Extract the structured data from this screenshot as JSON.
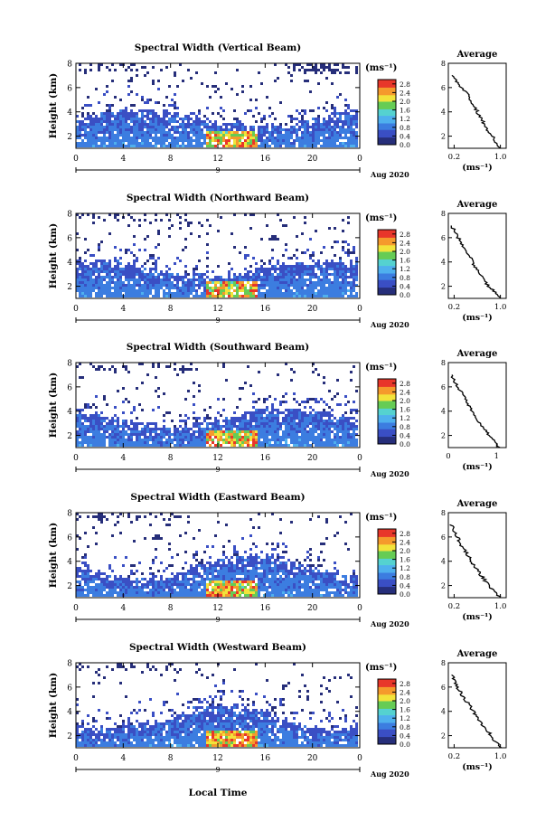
{
  "figure": {
    "xlabel": "Local Time",
    "colorbar_unit": "(ms⁻¹)",
    "avg_title": "Average",
    "avg_xlabel": "(ms⁻¹)",
    "date_label": "Aug 2020",
    "day_label": "9",
    "colors": {
      "darkest": "#262e7a",
      "dark_blue": "#3a4fc4",
      "blue": "#3c7de0",
      "light_blue": "#4fb0ee",
      "cyan": "#55d2d0",
      "green": "#66cc55",
      "yellow": "#f2e33a",
      "orange": "#f59a2c",
      "red": "#e8362a"
    }
  },
  "chart_data": [
    {
      "type": "heatmap",
      "title": "Spectral Width (Vertical Beam)",
      "ylabel": "Height (km)",
      "x_ticks": [
        "0",
        "4",
        "8",
        "12",
        "16",
        "20",
        "0"
      ],
      "y_ticks": [
        "2",
        "4",
        "6",
        "8"
      ],
      "xlim": [
        0,
        24
      ],
      "ylim": [
        1,
        8
      ],
      "colorbar_ticks": [
        "0.0",
        "0.4",
        "0.8",
        "1.2",
        "1.6",
        "2.0",
        "2.4",
        "2.8"
      ],
      "colorbar_range": [
        0,
        3.0
      ],
      "average": {
        "ticks": [
          "0.2",
          "1.0"
        ],
        "xlim": [
          0.1,
          1.1
        ],
        "ylim": [
          1,
          8
        ],
        "y_ticks": [
          "2",
          "4",
          "6",
          "8"
        ],
        "profile": {
          "height": [
            1.0,
            1.5,
            2.0,
            2.5,
            3.0,
            3.5,
            4.0,
            4.5,
            5.0,
            5.5,
            6.0,
            6.5,
            7.0
          ],
          "value": [
            1.0,
            0.93,
            0.86,
            0.78,
            0.72,
            0.66,
            0.6,
            0.55,
            0.48,
            0.42,
            0.33,
            0.25,
            0.18
          ]
        }
      }
    },
    {
      "type": "heatmap",
      "title": "Spectral Width (Northward Beam)",
      "ylabel": "Height (km)",
      "x_ticks": [
        "0",
        "4",
        "8",
        "12",
        "16",
        "20",
        "0"
      ],
      "y_ticks": [
        "2",
        "4",
        "6",
        "8"
      ],
      "xlim": [
        0,
        24
      ],
      "ylim": [
        1,
        8
      ],
      "colorbar_ticks": [
        "0.0",
        "0.4",
        "0.8",
        "1.2",
        "1.6",
        "2.0",
        "2.4",
        "2.8"
      ],
      "colorbar_range": [
        0,
        3.0
      ],
      "average": {
        "ticks": [
          "0.2",
          "1.0"
        ],
        "xlim": [
          0.1,
          1.1
        ],
        "ylim": [
          1,
          8
        ],
        "y_ticks": [
          "2",
          "4",
          "6",
          "8"
        ],
        "profile": {
          "height": [
            1.0,
            1.5,
            2.0,
            2.5,
            3.0,
            3.5,
            4.0,
            4.5,
            5.0,
            5.5,
            6.0,
            6.5,
            7.0
          ],
          "value": [
            1.0,
            0.9,
            0.8,
            0.72,
            0.64,
            0.58,
            0.52,
            0.46,
            0.4,
            0.34,
            0.27,
            0.21,
            0.16
          ]
        }
      }
    },
    {
      "type": "heatmap",
      "title": "Spectral Width (Southward Beam)",
      "ylabel": "Height (km)",
      "x_ticks": [
        "0",
        "4",
        "8",
        "12",
        "16",
        "20",
        "0"
      ],
      "y_ticks": [
        "2",
        "4",
        "6",
        "8"
      ],
      "xlim": [
        0,
        24
      ],
      "ylim": [
        1,
        8
      ],
      "colorbar_ticks": [
        "0.0",
        "0.4",
        "0.8",
        "1.2",
        "1.6",
        "2.0",
        "2.4",
        "2.8"
      ],
      "colorbar_range": [
        0,
        3.0
      ],
      "average": {
        "ticks": [
          "0",
          "1"
        ],
        "xlim": [
          0,
          1.2
        ],
        "ylim": [
          1,
          8
        ],
        "y_ticks": [
          "2",
          "4",
          "6",
          "8"
        ],
        "profile": {
          "height": [
            1.0,
            1.5,
            2.0,
            2.5,
            3.0,
            3.5,
            4.0,
            4.5,
            5.0,
            5.5,
            6.0,
            6.5,
            7.0
          ],
          "value": [
            1.05,
            0.95,
            0.85,
            0.75,
            0.65,
            0.57,
            0.5,
            0.42,
            0.35,
            0.28,
            0.2,
            0.12,
            0.05
          ]
        }
      }
    },
    {
      "type": "heatmap",
      "title": "Spectral Width (Eastward Beam)",
      "ylabel": "Height (km)",
      "x_ticks": [
        "0",
        "4",
        "8",
        "12",
        "16",
        "20",
        "0"
      ],
      "y_ticks": [
        "2",
        "4",
        "6",
        "8"
      ],
      "xlim": [
        0,
        24
      ],
      "ylim": [
        1,
        8
      ],
      "colorbar_ticks": [
        "0.0",
        "0.4",
        "0.8",
        "1.2",
        "1.6",
        "2.0",
        "2.4",
        "2.8"
      ],
      "colorbar_range": [
        0,
        3.0
      ],
      "average": {
        "ticks": [
          "0.2",
          "1.0"
        ],
        "xlim": [
          0.1,
          1.1
        ],
        "ylim": [
          1,
          8
        ],
        "y_ticks": [
          "2",
          "4",
          "6",
          "8"
        ],
        "profile": {
          "height": [
            1.0,
            1.5,
            2.0,
            2.5,
            3.0,
            3.5,
            4.0,
            4.5,
            5.0,
            5.5,
            6.0,
            6.5,
            7.0
          ],
          "value": [
            1.0,
            0.9,
            0.8,
            0.72,
            0.64,
            0.56,
            0.5,
            0.44,
            0.36,
            0.3,
            0.26,
            0.2,
            0.15
          ]
        }
      }
    },
    {
      "type": "heatmap",
      "title": "Spectral Width (Westward Beam)",
      "ylabel": "Height (km)",
      "x_ticks": [
        "0",
        "4",
        "8",
        "12",
        "16",
        "20",
        "0"
      ],
      "y_ticks": [
        "2",
        "4",
        "6",
        "8"
      ],
      "xlim": [
        0,
        24
      ],
      "ylim": [
        1,
        8
      ],
      "colorbar_ticks": [
        "0.0",
        "0.4",
        "0.8",
        "1.2",
        "1.6",
        "2.0",
        "2.4",
        "2.8"
      ],
      "colorbar_range": [
        0,
        3.0
      ],
      "average": {
        "ticks": [
          "0.2",
          "1.0"
        ],
        "xlim": [
          0.1,
          1.1
        ],
        "ylim": [
          1,
          8
        ],
        "y_ticks": [
          "2",
          "4",
          "6",
          "8"
        ],
        "profile": {
          "height": [
            1.0,
            1.5,
            2.0,
            2.5,
            3.0,
            3.5,
            4.0,
            4.5,
            5.0,
            5.5,
            6.0,
            6.5,
            7.0
          ],
          "value": [
            1.0,
            0.92,
            0.84,
            0.76,
            0.68,
            0.6,
            0.53,
            0.46,
            0.39,
            0.32,
            0.26,
            0.2,
            0.16
          ]
        }
      }
    }
  ]
}
